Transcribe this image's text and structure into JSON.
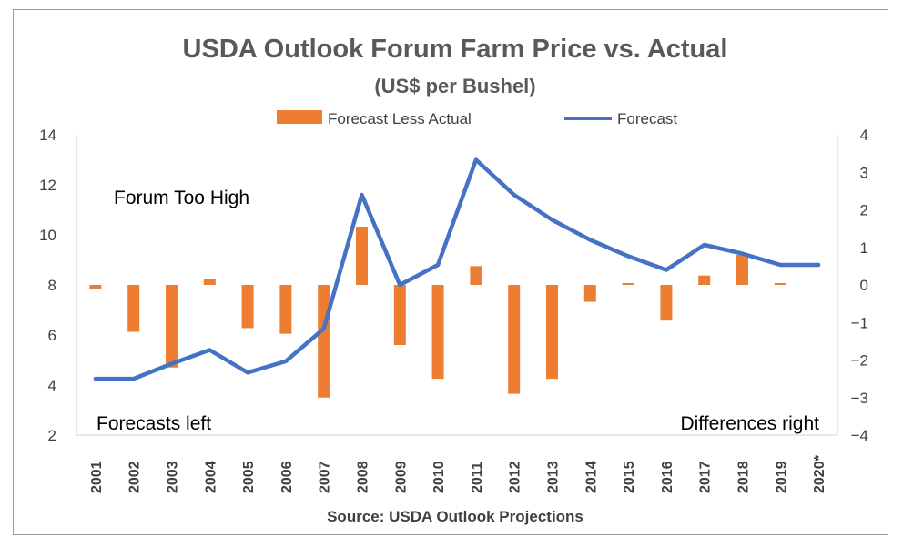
{
  "chart_data": {
    "type": "bar+line",
    "title": "USDA Outlook Forum Farm Price vs. Actual",
    "subtitle": "(US$ per Bushel)",
    "source": "Source: USDA Outlook Projections",
    "categories": [
      "2001",
      "2002",
      "2003",
      "2004",
      "2005",
      "2006",
      "2007",
      "2008",
      "2009",
      "2010",
      "2011",
      "2012",
      "2013",
      "2014",
      "2015",
      "2016",
      "2017",
      "2018",
      "2019",
      "2020*"
    ],
    "series": [
      {
        "name": "Forecast Less Actual",
        "type": "bar",
        "axis": "right",
        "color": "#ED7D31",
        "values": [
          -0.1,
          -1.25,
          -2.2,
          0.15,
          -1.15,
          -1.3,
          -3.0,
          1.55,
          -1.6,
          -2.5,
          0.5,
          -2.9,
          -2.5,
          -0.45,
          0.05,
          -0.95,
          0.25,
          0.8,
          0.05,
          null
        ]
      },
      {
        "name": "Forecast",
        "type": "line",
        "axis": "left",
        "color": "#4472C4",
        "values": [
          4.25,
          4.25,
          4.85,
          5.4,
          4.5,
          4.95,
          6.25,
          11.6,
          8.0,
          8.8,
          13.0,
          11.6,
          10.6,
          9.8,
          9.15,
          8.6,
          9.6,
          9.25,
          8.8,
          8.8
        ]
      }
    ],
    "y_left": {
      "min": 2,
      "max": 14,
      "ticks": [
        "2",
        "4",
        "6",
        "8",
        "10",
        "12",
        "14"
      ]
    },
    "y_right": {
      "min": -4,
      "max": 4,
      "ticks": [
        "-4",
        "-3",
        "-2",
        "-1",
        "0",
        "1",
        "2",
        "3",
        "4"
      ]
    },
    "annotations": {
      "top_left": "Forum Too High",
      "bottom_left": "Forecasts left",
      "bottom_right": "Differences right"
    },
    "legend_position": "top",
    "grid": false
  }
}
